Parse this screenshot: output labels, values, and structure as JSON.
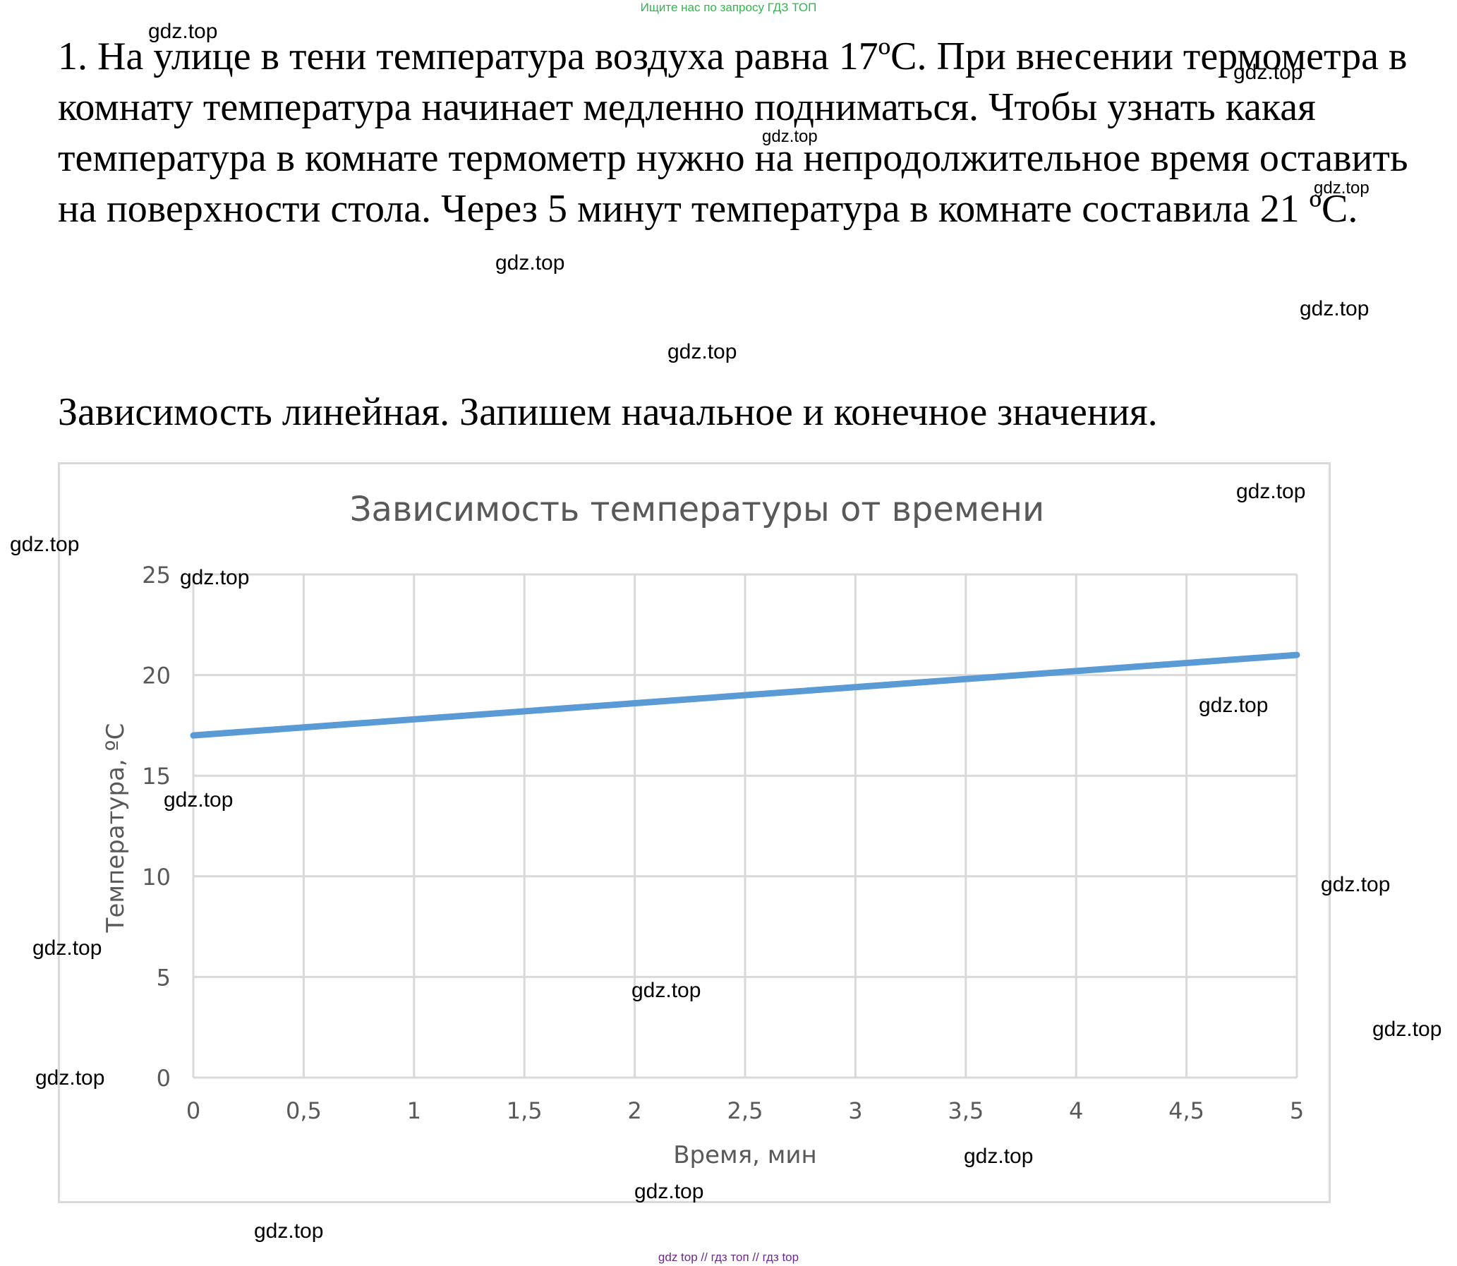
{
  "banner_top": "Ищите нас по запросу ГДЗ ТОП",
  "problem_text": "1. На улице в тени температура воздуха равна 17ºC. При внесении термометра в комнату температура начинает медленно подниматься. Чтобы узнать какая температура в комнате термометр нужно на непродолжительное время оставить на поверхности стола. Через 5 минут температура в комнате составила 21 ºC.",
  "conclusion_text": "Зависимость линейная. Запишем начальное и конечное значения.",
  "watermark": "gdz.top",
  "banner_bottom": "gdz top  //  гдз топ  //  гдз top",
  "colors": {
    "line": "#5b9bd5",
    "grid": "#d9d9d9",
    "axis_text": "#595959",
    "title_text": "#595959"
  },
  "chart_data": {
    "type": "line",
    "title": "Зависимость температуры от времени",
    "xlabel": "Время, мин",
    "ylabel": "Температура, ºC",
    "xlim": [
      0,
      5
    ],
    "ylim": [
      0,
      25
    ],
    "x_ticks": [
      "0",
      "0,5",
      "1",
      "1,5",
      "2",
      "2,5",
      "3",
      "3,5",
      "4",
      "4,5",
      "5"
    ],
    "y_ticks": [
      "0",
      "5",
      "10",
      "15",
      "20",
      "25"
    ],
    "grid": true,
    "series": [
      {
        "x": [
          0,
          5
        ],
        "y": [
          17,
          21
        ]
      }
    ]
  }
}
